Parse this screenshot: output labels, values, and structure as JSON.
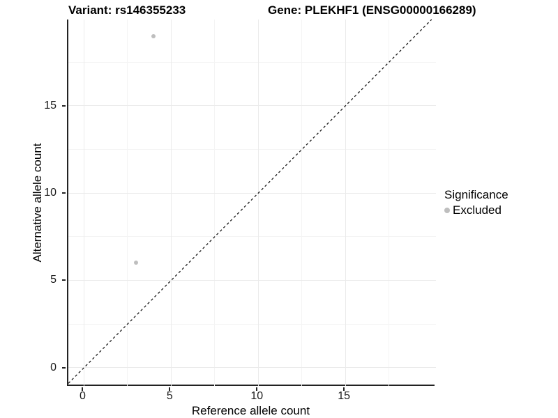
{
  "titles": {
    "variant": "Variant: rs146355233",
    "gene": "Gene: PLEKHF1 (ENSG00000166289)"
  },
  "chart_data": {
    "type": "scatter",
    "title": "Variant: rs146355233 — Gene: PLEKHF1 (ENSG00000166289)",
    "xlabel": "Reference allele count",
    "ylabel": "Alternative allele count",
    "xlim": [
      -0.9,
      20.2
    ],
    "ylim": [
      -1.05,
      19.95
    ],
    "x_major_ticks": [
      0,
      5,
      10,
      15
    ],
    "y_major_ticks": [
      0,
      5,
      10,
      15
    ],
    "x_minor_ticks": [
      2.5,
      7.5,
      12.5,
      17.5
    ],
    "y_minor_ticks": [
      2.5,
      7.5,
      12.5,
      17.5
    ],
    "grid": true,
    "series": [
      {
        "name": "Excluded",
        "points": [
          {
            "x": 4,
            "y": 19
          },
          {
            "x": 3,
            "y": 6
          }
        ]
      }
    ],
    "identity_line": {
      "slope": 1,
      "intercept": 0,
      "style": "dashed"
    },
    "legend": {
      "position": "right",
      "title": "Significance",
      "entries": [
        {
          "label": "Excluded",
          "color": "#bebebe"
        }
      ]
    },
    "colors": {
      "point": "#bebebe",
      "axis_line": "#222222",
      "grid_major": "#ebebeb",
      "grid_minor": "#f4f4f4",
      "reference_line": "#1a1a1a",
      "text": "#1a1a1a"
    }
  }
}
